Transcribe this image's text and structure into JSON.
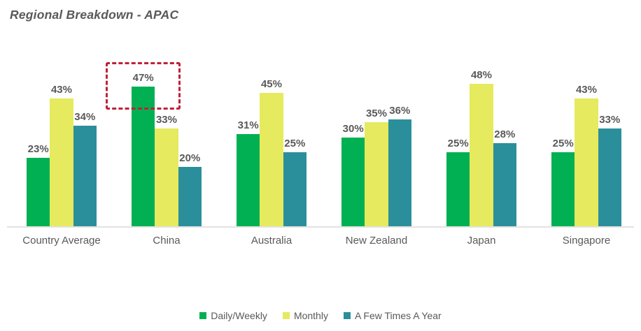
{
  "title": "Regional Breakdown - APAC",
  "chart_data": {
    "type": "bar",
    "title": "Regional Breakdown - APAC",
    "categories": [
      "Country Average",
      "China",
      "Australia",
      "New Zealand",
      "Japan",
      "Singapore"
    ],
    "series": [
      {
        "name": "Daily/Weekly",
        "color": "#00b052",
        "values": [
          23,
          47,
          31,
          30,
          25,
          25
        ]
      },
      {
        "name": "Monthly",
        "color": "#e5ea5e",
        "values": [
          43,
          33,
          45,
          35,
          48,
          43
        ]
      },
      {
        "name": "A Few Times A Year",
        "color": "#2b8f9b",
        "values": [
          34,
          20,
          25,
          36,
          28,
          33
        ]
      }
    ],
    "value_suffix": "%",
    "ylim": [
      0,
      50
    ],
    "grid": false,
    "data_labels": true,
    "legend_position": "bottom",
    "annotations": [
      {
        "type": "dashed-box",
        "target_category": "China",
        "target_series": "Daily/Weekly",
        "target_value": "47%",
        "color": "#be2239"
      }
    ],
    "colors": {
      "title_text": "#595959",
      "data_label_text": "#595959",
      "category_label_text": "#595959",
      "axis_line": "#e2e2e2",
      "highlight_red": "#be2239"
    }
  },
  "legend": {
    "items": [
      {
        "label": "Daily/Weekly",
        "color": "#00b052"
      },
      {
        "label": "Monthly",
        "color": "#e5ea5e"
      },
      {
        "label": "A Few Times A Year",
        "color": "#2b8f9b"
      }
    ]
  }
}
